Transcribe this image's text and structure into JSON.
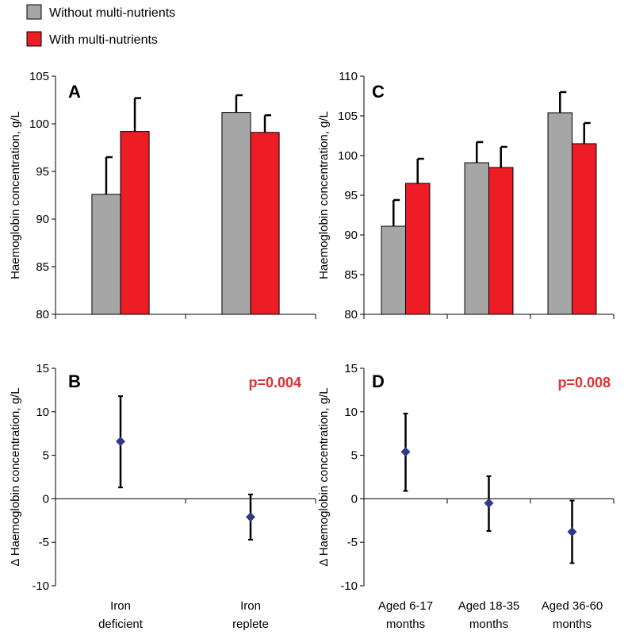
{
  "legend": [
    {
      "label": "Without multi-nutrients",
      "color": "#a6a6a6"
    },
    {
      "label": "With multi-nutrients",
      "color": "#ee1c25"
    }
  ],
  "colors": {
    "without": "#a6a6a6",
    "with": "#ee1c25",
    "marker": "#2e3a87",
    "pvalue": "#e03030"
  },
  "chart_data": [
    {
      "panel": "A",
      "type": "bar",
      "ylabel": "Haemoglobin concentration, g/L",
      "ylim": [
        80,
        105
      ],
      "yticks": [
        80,
        85,
        90,
        95,
        100,
        105
      ],
      "categories": [
        "Iron deficient",
        "Iron replete"
      ],
      "series": [
        {
          "name": "Without multi-nutrients",
          "values": [
            92.6,
            101.2
          ],
          "error_upper": [
            96.5,
            103.0
          ]
        },
        {
          "name": "With multi-nutrients",
          "values": [
            99.2,
            99.1
          ],
          "error_upper": [
            102.7,
            100.9
          ]
        }
      ]
    },
    {
      "panel": "B",
      "type": "scatter",
      "ylabel": "Δ Haemoglobin concentration, g/L",
      "ylim": [
        -10,
        15
      ],
      "yticks": [
        -10,
        -5,
        0,
        5,
        10,
        15
      ],
      "categories": [
        [
          "Iron",
          "deficient"
        ],
        [
          "Iron",
          "replete"
        ]
      ],
      "values": [
        6.6,
        -2.1
      ],
      "error_low": [
        1.3,
        -4.7
      ],
      "error_high": [
        11.8,
        0.5
      ],
      "annotation": "p=0.004"
    },
    {
      "panel": "C",
      "type": "bar",
      "ylabel": "Haemoglobin concentration, g/L",
      "ylim": [
        80,
        110
      ],
      "yticks": [
        80,
        85,
        90,
        95,
        100,
        105,
        110
      ],
      "categories": [
        "Aged 6-17 months",
        "Aged 18-35 months",
        "Aged 36-60 months"
      ],
      "series": [
        {
          "name": "Without multi-nutrients",
          "values": [
            91.1,
            99.1,
            105.4
          ],
          "error_upper": [
            94.4,
            101.7,
            108.0
          ]
        },
        {
          "name": "With multi-nutrients",
          "values": [
            96.5,
            98.5,
            101.5
          ],
          "error_upper": [
            99.6,
            101.1,
            104.1
          ]
        }
      ]
    },
    {
      "panel": "D",
      "type": "scatter",
      "ylabel": "Δ Haemoglobin concentration, g/L",
      "ylim": [
        -10,
        15
      ],
      "yticks": [
        -10,
        -5,
        0,
        5,
        10,
        15
      ],
      "categories": [
        [
          "Aged 6-17",
          "months"
        ],
        [
          "Aged 18-35",
          "months"
        ],
        [
          "Aged 36-60",
          "months"
        ]
      ],
      "values": [
        5.4,
        -0.5,
        -3.8
      ],
      "error_low": [
        0.9,
        -3.7,
        -7.4
      ],
      "error_high": [
        9.8,
        2.6,
        -0.2
      ],
      "annotation": "p=0.008"
    }
  ]
}
